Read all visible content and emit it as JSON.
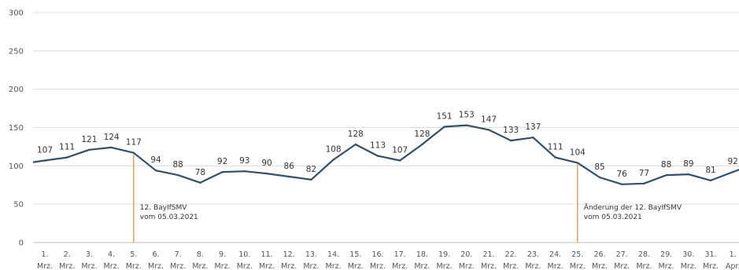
{
  "chart_data": {
    "type": "line",
    "title": "",
    "xlabel": "",
    "ylabel": "",
    "ylim": [
      0,
      300
    ],
    "yticks": [
      0,
      50,
      100,
      150,
      200,
      250,
      300
    ],
    "grid": true,
    "legend": "none",
    "line_color": "#2f5072",
    "grid_color": "#dddddd",
    "marker_color": "#e08a2c",
    "categories": [
      [
        "1.",
        "Mrz."
      ],
      [
        "2.",
        "Mrz."
      ],
      [
        "3.",
        "Mrz."
      ],
      [
        "4.",
        "Mrz."
      ],
      [
        "5.",
        "Mrz."
      ],
      [
        "6.",
        "Mrz."
      ],
      [
        "7.",
        "Mrz."
      ],
      [
        "8.",
        "Mrz."
      ],
      [
        "9.",
        "Mrz."
      ],
      [
        "10.",
        "Mrz."
      ],
      [
        "11.",
        "Mrz."
      ],
      [
        "12.",
        "Mrz."
      ],
      [
        "13.",
        "Mrz."
      ],
      [
        "14.",
        "Mrz."
      ],
      [
        "15.",
        "Mrz."
      ],
      [
        "16.",
        "Mrz."
      ],
      [
        "17.",
        "Mrz."
      ],
      [
        "18.",
        "Mrz."
      ],
      [
        "19.",
        "Mrz."
      ],
      [
        "20.",
        "Mrz."
      ],
      [
        "21.",
        "Mrz."
      ],
      [
        "22.",
        "Mrz."
      ],
      [
        "23.",
        "Mrz."
      ],
      [
        "24.",
        "Mrz."
      ],
      [
        "25.",
        "Mrz."
      ],
      [
        "26.",
        "Mrz."
      ],
      [
        "27.",
        "Mrz."
      ],
      [
        "28.",
        "Mrz."
      ],
      [
        "29.",
        "Mrz."
      ],
      [
        "30.",
        "Mrz."
      ],
      [
        "31.",
        "Mrz."
      ],
      [
        "1.",
        "Apr."
      ]
    ],
    "values": [
      107,
      111,
      121,
      124,
      117,
      94,
      88,
      78,
      92,
      93,
      90,
      86,
      82,
      108,
      128,
      113,
      107,
      128,
      151,
      153,
      147,
      133,
      137,
      111,
      104,
      85,
      76,
      77,
      88,
      89,
      81,
      92
    ],
    "annotations": [
      {
        "category_index": 4,
        "lines": [
          "12. BayIfSMV",
          "vom 05.03.2021"
        ]
      },
      {
        "category_index": 24,
        "lines": [
          "Änderung der 12. BayIfSMV",
          "vom 05.03.2021"
        ]
      }
    ]
  }
}
